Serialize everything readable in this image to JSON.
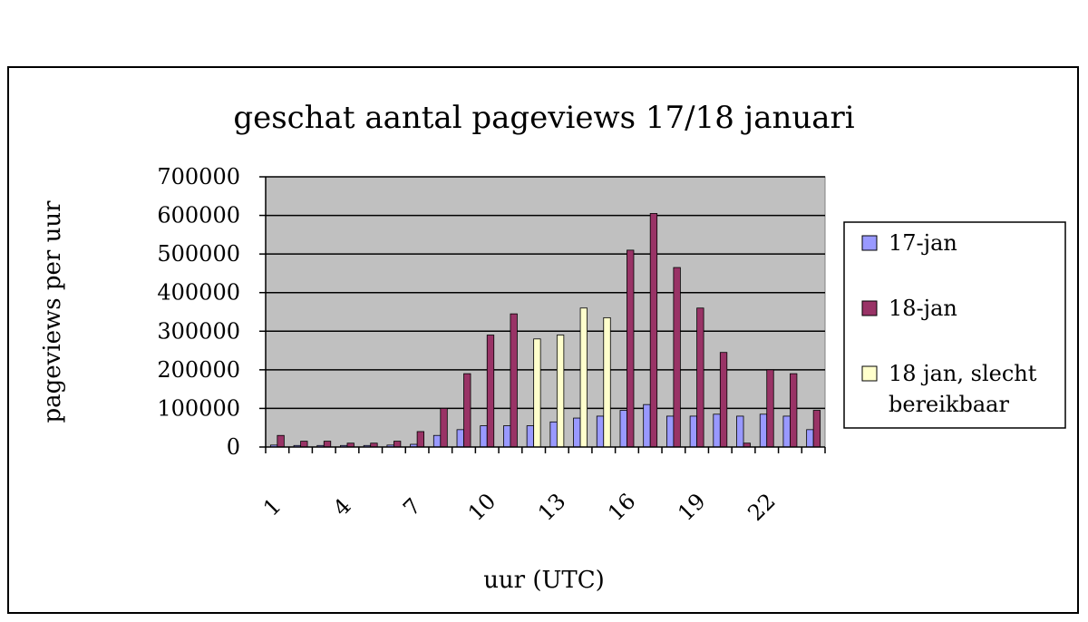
{
  "chart_data": {
    "type": "bar",
    "title": "geschat aantal pageviews 17/18 januari",
    "xlabel": "uur (UTC)",
    "ylabel": "pageviews per uur",
    "ylim": [
      0,
      700000
    ],
    "yticks": [
      0,
      100000,
      200000,
      300000,
      400000,
      500000,
      600000,
      700000
    ],
    "ytick_labels": [
      "0",
      "100000",
      "200000",
      "300000",
      "400000",
      "500000",
      "600000",
      "700000"
    ],
    "categories": [
      "1",
      "2",
      "3",
      "4",
      "5",
      "6",
      "7",
      "8",
      "9",
      "10",
      "11",
      "12",
      "13",
      "14",
      "15",
      "16",
      "17",
      "18",
      "19",
      "20",
      "21",
      "22",
      "23",
      "24"
    ],
    "xtick_labels": [
      "1",
      "4",
      "7",
      "10",
      "13",
      "16",
      "19",
      "22"
    ],
    "xtick_categories": [
      "1",
      "4",
      "7",
      "10",
      "13",
      "16",
      "19",
      "22"
    ],
    "grid": true,
    "legend_position": "right",
    "series": [
      {
        "name": "17-jan",
        "color": "#9999ff",
        "values": [
          5000,
          4000,
          4000,
          4000,
          4000,
          5000,
          7000,
          30000,
          45000,
          55000,
          55000,
          55000,
          65000,
          75000,
          80000,
          95000,
          110000,
          80000,
          80000,
          85000,
          80000,
          85000,
          80000,
          45000
        ]
      },
      {
        "name": "18-jan",
        "color": "#993366",
        "values": [
          30000,
          15000,
          15000,
          10000,
          10000,
          15000,
          40000,
          100000,
          190000,
          290000,
          345000,
          null,
          null,
          null,
          null,
          510000,
          605000,
          465000,
          360000,
          245000,
          10000,
          200000,
          190000,
          95000
        ]
      },
      {
        "name": "18 jan, slecht bereikbaar",
        "color": "#ffffcc",
        "values": [
          null,
          null,
          null,
          null,
          null,
          null,
          null,
          null,
          null,
          null,
          null,
          280000,
          290000,
          360000,
          335000,
          null,
          null,
          null,
          null,
          null,
          null,
          null,
          null,
          null
        ]
      }
    ]
  }
}
